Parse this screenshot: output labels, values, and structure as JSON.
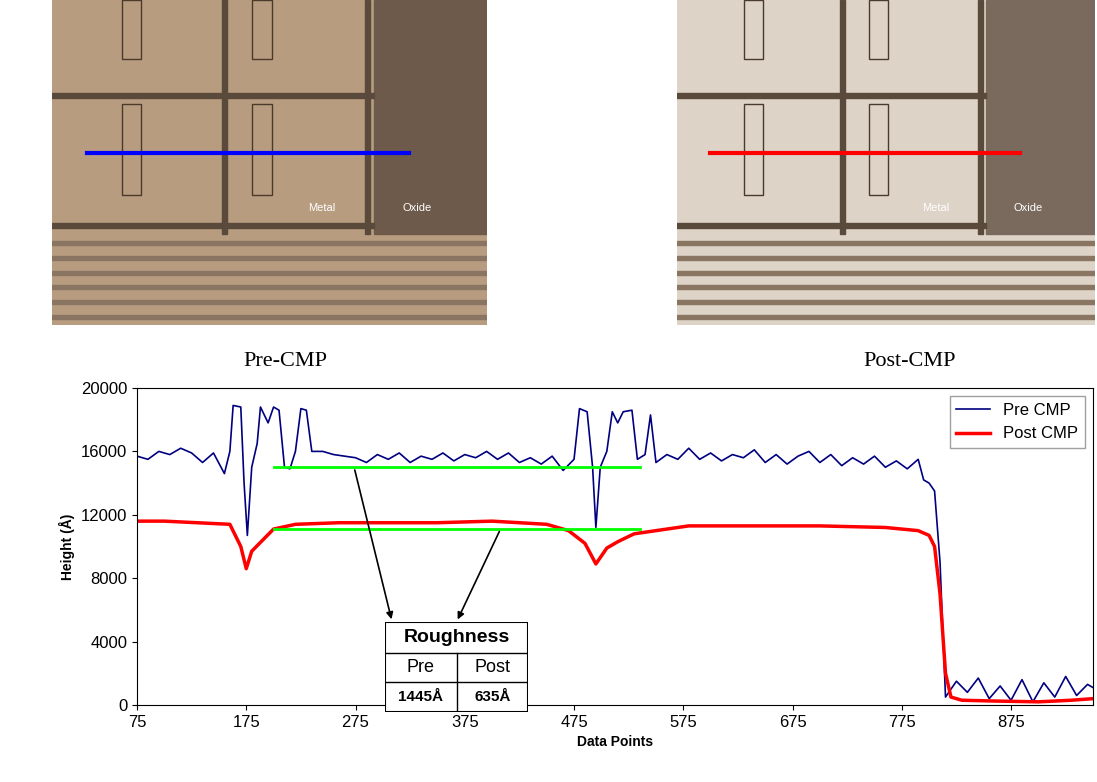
{
  "chart_data": {
    "type": "line",
    "x_label": "Data Points",
    "y_label": "Height (Å)",
    "xlim": [
      75,
      950
    ],
    "xticks": [
      75,
      175,
      275,
      375,
      475,
      575,
      675,
      775,
      875
    ],
    "ylim": [
      0,
      20000
    ],
    "yticks": [
      0,
      4000,
      8000,
      12000,
      16000,
      20000
    ],
    "legend": "upper right",
    "series": [
      {
        "name": "Pre CMP",
        "color": "#000080",
        "x": [
          75,
          85,
          95,
          105,
          115,
          125,
          135,
          145,
          155,
          160,
          163,
          170,
          173,
          176,
          180,
          185,
          188,
          195,
          200,
          205,
          210,
          215,
          220,
          225,
          230,
          235,
          245,
          255,
          265,
          275,
          285,
          295,
          305,
          315,
          325,
          335,
          345,
          355,
          365,
          375,
          385,
          395,
          405,
          415,
          425,
          435,
          445,
          455,
          465,
          475,
          480,
          487,
          492,
          495,
          499,
          505,
          510,
          515,
          520,
          528,
          533,
          540,
          545,
          550,
          560,
          570,
          580,
          590,
          600,
          610,
          620,
          630,
          640,
          650,
          660,
          670,
          680,
          690,
          700,
          710,
          720,
          730,
          740,
          750,
          760,
          770,
          780,
          790,
          795,
          800,
          805,
          810,
          815,
          825,
          835,
          845,
          855,
          865,
          875,
          885,
          895,
          905,
          915,
          925,
          935,
          945,
          950
        ],
        "values": [
          15700,
          15500,
          16000,
          15800,
          16200,
          15900,
          15300,
          15900,
          14600,
          16000,
          18900,
          18800,
          14000,
          10700,
          15000,
          16500,
          18800,
          17800,
          18800,
          18600,
          15000,
          14900,
          16000,
          18700,
          18600,
          16000,
          16000,
          15800,
          15700,
          15600,
          15300,
          15800,
          15500,
          15900,
          15300,
          15700,
          15500,
          15900,
          15400,
          15800,
          15600,
          16000,
          15500,
          15900,
          15300,
          15600,
          15200,
          15700,
          14800,
          15500,
          18700,
          18500,
          15000,
          11200,
          15000,
          16000,
          18500,
          17800,
          18500,
          18600,
          15500,
          15800,
          18300,
          15300,
          15800,
          15500,
          16200,
          15500,
          15900,
          15400,
          15800,
          15600,
          16100,
          15300,
          15800,
          15200,
          15700,
          16000,
          15300,
          15800,
          15100,
          15600,
          15200,
          15700,
          15000,
          15400,
          14900,
          15500,
          14200,
          14000,
          13500,
          9000,
          500,
          1500,
          800,
          1700,
          400,
          1200,
          300,
          1600,
          200,
          1400,
          500,
          1800,
          600,
          1300,
          1100
        ]
      },
      {
        "name": "Post CMP",
        "color": "#ff0000",
        "x": [
          75,
          100,
          130,
          160,
          170,
          175,
          180,
          190,
          200,
          220,
          260,
          300,
          350,
          400,
          450,
          470,
          485,
          495,
          505,
          515,
          530,
          550,
          580,
          650,
          700,
          760,
          790,
          800,
          805,
          810,
          815,
          820,
          830,
          860,
          900,
          930,
          950
        ],
        "values": [
          11600,
          11600,
          11500,
          11400,
          10000,
          8600,
          9700,
          10400,
          11100,
          11400,
          11500,
          11500,
          11500,
          11600,
          11400,
          11000,
          10200,
          8900,
          9900,
          10300,
          10800,
          11000,
          11300,
          11300,
          11300,
          11200,
          11000,
          10700,
          10000,
          7000,
          2000,
          500,
          300,
          250,
          200,
          300,
          400
        ]
      }
    ],
    "reference_lines": [
      {
        "x": [
          200,
          535
        ],
        "y": 15000,
        "color": "#00ff00"
      },
      {
        "x": [
          200,
          535
        ],
        "y": 11100,
        "color": "#00ff00"
      }
    ],
    "table": {
      "title": "Roughness",
      "columns": [
        "Pre",
        "Post"
      ],
      "values": [
        "1445Å",
        "635Å"
      ]
    },
    "panels": [
      {
        "caption": "Pre-CMP",
        "labels": [
          "Metal",
          "Oxide"
        ],
        "color": "#0000ff"
      },
      {
        "caption": "Post-CMP",
        "labels": [
          "Metal",
          "Oxide"
        ],
        "color": "#ff0000"
      }
    ]
  }
}
